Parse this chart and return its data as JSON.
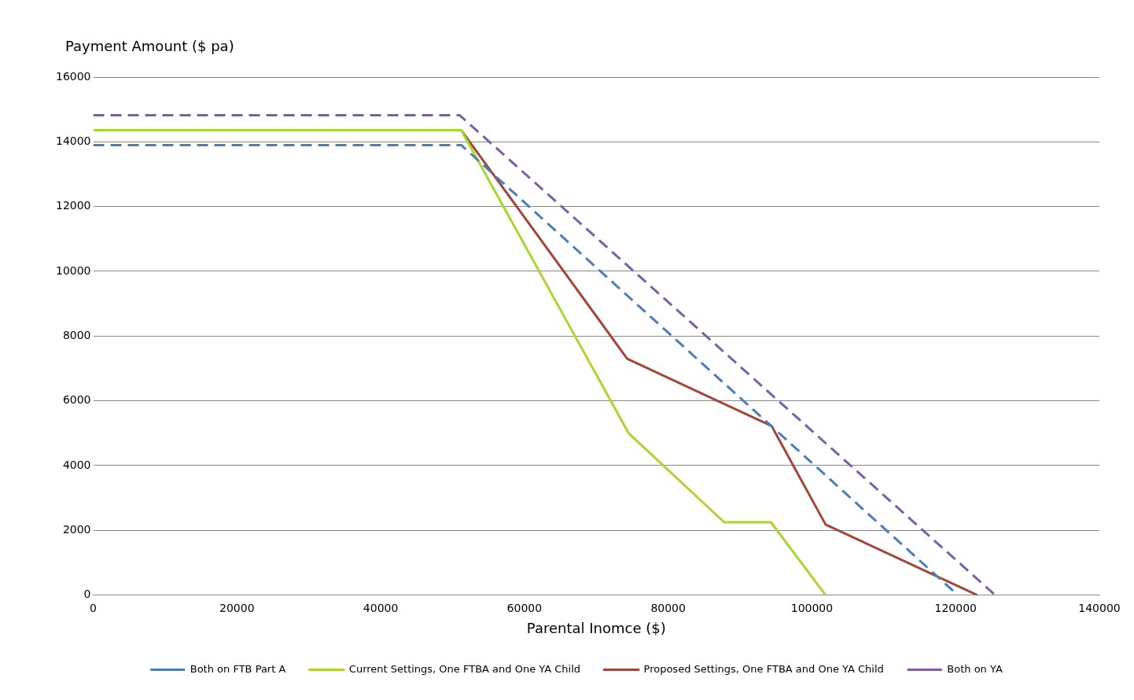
{
  "chart_data": {
    "type": "line",
    "xlabel": "Parental Inomce ($)",
    "ylabel": "Payment Amount ($ pa)",
    "xlim": [
      0,
      140000
    ],
    "xticks": [
      0,
      20000,
      40000,
      60000,
      80000,
      100000,
      120000,
      140000
    ],
    "ylim": [
      0,
      16000
    ],
    "yticks": [
      0,
      2000,
      4000,
      6000,
      8000,
      10000,
      12000,
      14000,
      16000
    ],
    "grid": "y",
    "legend": "bottom",
    "marker": "none",
    "series": [
      {
        "name": "Both on FTB Part A",
        "color": "#4a7ebb",
        "line_style": "dashed",
        "x": [
          0,
          51200,
          120300
        ],
        "values": [
          13900,
          13900,
          0
        ]
      },
      {
        "name": "Current Settings, One FTBA and One YA Child",
        "color": "#a6d82c",
        "line_style": "solid",
        "x": [
          0,
          51200,
          74500,
          87800,
          94300,
          101900
        ],
        "values": [
          14360,
          14360,
          5000,
          2250,
          2250,
          0
        ]
      },
      {
        "name": "Proposed Settings, One FTBA and One YA Child",
        "color": "#a5443a",
        "line_style": "solid",
        "x": [
          51200,
          74300,
          94400,
          101900,
          123000
        ],
        "values": [
          14360,
          7300,
          5220,
          2180,
          0
        ]
      },
      {
        "name": "Both on YA",
        "color": "#7b5ea7",
        "line_style": "dashed",
        "x": [
          0,
          51000,
          125500
        ],
        "values": [
          14820,
          14820,
          0
        ]
      }
    ]
  }
}
